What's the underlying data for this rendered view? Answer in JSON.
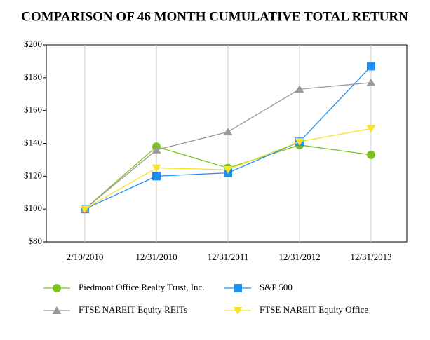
{
  "chart_data": {
    "type": "line",
    "title": "COMPARISON OF 46 MONTH CUMULATIVE TOTAL RETURN",
    "categories": [
      "2/10/2010",
      "12/31/2010",
      "12/31/2011",
      "12/31/2012",
      "12/31/2013"
    ],
    "series": [
      {
        "name": "Piedmont Office Realty Trust, Inc.",
        "color": "#7dc11f",
        "marker": "circle",
        "values": [
          100,
          138,
          125,
          139,
          133
        ]
      },
      {
        "name": "S&P 500",
        "color": "#1e8ff0",
        "marker": "square",
        "values": [
          100,
          120,
          122,
          141,
          187
        ]
      },
      {
        "name": "FTSE NAREIT Equity REITs",
        "color": "#9a9a9a",
        "marker": "triangle",
        "values": [
          100,
          136,
          147,
          173,
          177
        ]
      },
      {
        "name": "FTSE NAREIT Equity Office",
        "color": "#f8e22e",
        "marker": "triangle-down",
        "values": [
          100,
          125,
          124,
          141,
          149
        ]
      }
    ],
    "ylim": [
      80,
      200
    ],
    "yticks": [
      {
        "value": 80,
        "label": "$80"
      },
      {
        "value": 100,
        "label": "$100"
      },
      {
        "value": 120,
        "label": "$120"
      },
      {
        "value": 140,
        "label": "$140"
      },
      {
        "value": 160,
        "label": "$160"
      },
      {
        "value": 180,
        "label": "$180"
      },
      {
        "value": 200,
        "label": "$200"
      }
    ],
    "grid": true
  }
}
